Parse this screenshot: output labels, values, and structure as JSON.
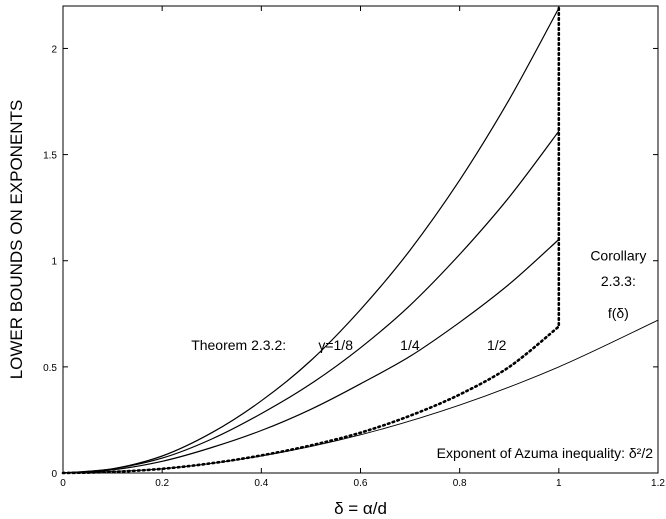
{
  "chart_data": {
    "type": "line",
    "xlabel": "δ = α/d",
    "ylabel": "LOWER BOUNDS ON EXPONENTS",
    "xlim": [
      0,
      1.2
    ],
    "ylim": [
      0,
      2.2
    ],
    "xticks": [
      0,
      0.2,
      0.4,
      0.6,
      0.8,
      1,
      1.2
    ],
    "xtick_labels": [
      "0",
      "0.2",
      "0.4",
      "0.6",
      "0.8",
      "1",
      "1.2"
    ],
    "yticks": [
      0,
      0.5,
      1,
      1.5,
      2
    ],
    "ytick_labels": [
      "0",
      "0.5",
      "1",
      "1.5",
      "2"
    ],
    "grid": false,
    "legend": "none",
    "series": [
      {
        "style": "solid",
        "color": "#000000",
        "x": [
          0,
          0.1,
          0.2,
          0.3,
          0.4,
          0.5,
          0.6,
          0.7,
          0.8,
          0.9,
          1.0
        ],
        "y": [
          0,
          0.02,
          0.08,
          0.19,
          0.34,
          0.53,
          0.77,
          1.05,
          1.38,
          1.76,
          2.19
        ]
      },
      {
        "style": "solid",
        "color": "#000000",
        "x": [
          0,
          0.1,
          0.2,
          0.3,
          0.4,
          0.5,
          0.6,
          0.7,
          0.8,
          0.9,
          1.0
        ],
        "y": [
          0,
          0.02,
          0.07,
          0.16,
          0.28,
          0.42,
          0.59,
          0.79,
          1.03,
          1.3,
          1.61
        ]
      },
      {
        "style": "solid",
        "color": "#000000",
        "x": [
          0,
          0.1,
          0.2,
          0.3,
          0.4,
          0.5,
          0.6,
          0.7,
          0.8,
          0.9,
          1.0
        ],
        "y": [
          0,
          0.015,
          0.055,
          0.12,
          0.2,
          0.3,
          0.42,
          0.55,
          0.71,
          0.89,
          1.1
        ]
      },
      {
        "style": "dotted",
        "color": "#000000",
        "x": [
          0,
          0.1,
          0.2,
          0.3,
          0.4,
          0.5,
          0.6,
          0.7,
          0.8,
          0.9,
          1.0,
          1.0
        ],
        "y": [
          0,
          0.005,
          0.02,
          0.046,
          0.083,
          0.13,
          0.19,
          0.27,
          0.37,
          0.5,
          0.69,
          2.2
        ]
      },
      {
        "style": "solid",
        "color": "#000000",
        "width": "thin",
        "x": [
          0,
          0.2,
          0.4,
          0.6,
          0.8,
          1.0,
          1.2
        ],
        "y": [
          0,
          0.02,
          0.08,
          0.18,
          0.32,
          0.5,
          0.72
        ]
      }
    ],
    "annotations": [
      {
        "text": "Theorem 2.3.2:",
        "x": 0.45,
        "y": 0.58,
        "anchor": "end"
      },
      {
        "text": "γ=1/8",
        "x": 0.515,
        "y": 0.58,
        "anchor": "start"
      },
      {
        "text": "1/4",
        "x": 0.68,
        "y": 0.58,
        "anchor": "start"
      },
      {
        "text": "1/2",
        "x": 0.855,
        "y": 0.58,
        "anchor": "start"
      },
      {
        "text": "Corollary",
        "x": 1.12,
        "y": 1.0,
        "anchor": "middle"
      },
      {
        "text": "2.3.3:",
        "x": 1.12,
        "y": 0.88,
        "anchor": "middle"
      },
      {
        "text": "f(δ)",
        "x": 1.12,
        "y": 0.73,
        "anchor": "middle"
      },
      {
        "text": "Exponent of Azuma inequality: δ²/2",
        "x": 1.19,
        "y": 0.07,
        "anchor": "end"
      }
    ]
  }
}
